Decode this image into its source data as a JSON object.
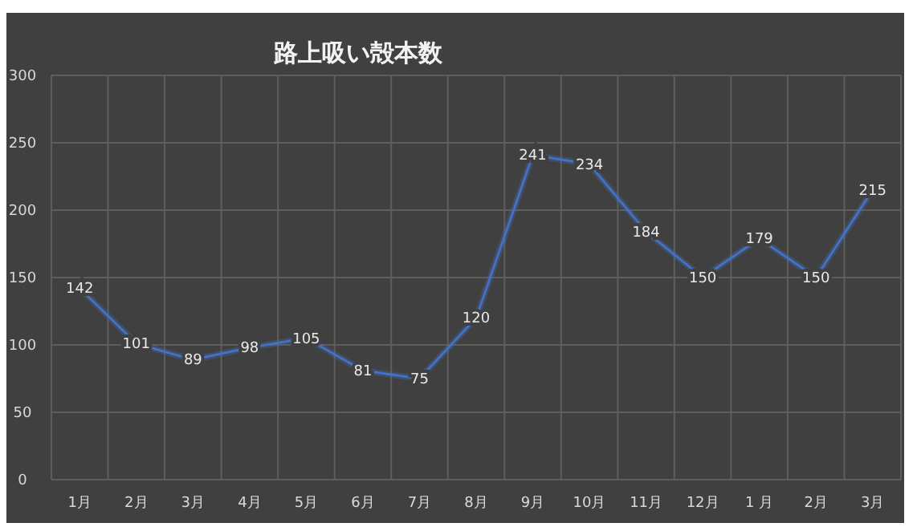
{
  "chart_data": {
    "type": "line",
    "title": "路上吸い殻本数",
    "categories": [
      "1月",
      "2月",
      "3月",
      "4月",
      "5月",
      "6月",
      "7月",
      "8月",
      "9月",
      "10月",
      "11月",
      "12月",
      "1 月",
      "2月",
      "3月"
    ],
    "values": [
      142,
      101,
      89,
      98,
      105,
      81,
      75,
      120,
      241,
      234,
      184,
      150,
      179,
      150,
      215
    ],
    "color": "#4472c4",
    "ylim": [
      0,
      300
    ],
    "yticks": [
      0,
      50,
      100,
      150,
      200,
      250,
      300
    ],
    "grid": true,
    "data_labels": true,
    "marker": "none",
    "line_style": "solid"
  }
}
